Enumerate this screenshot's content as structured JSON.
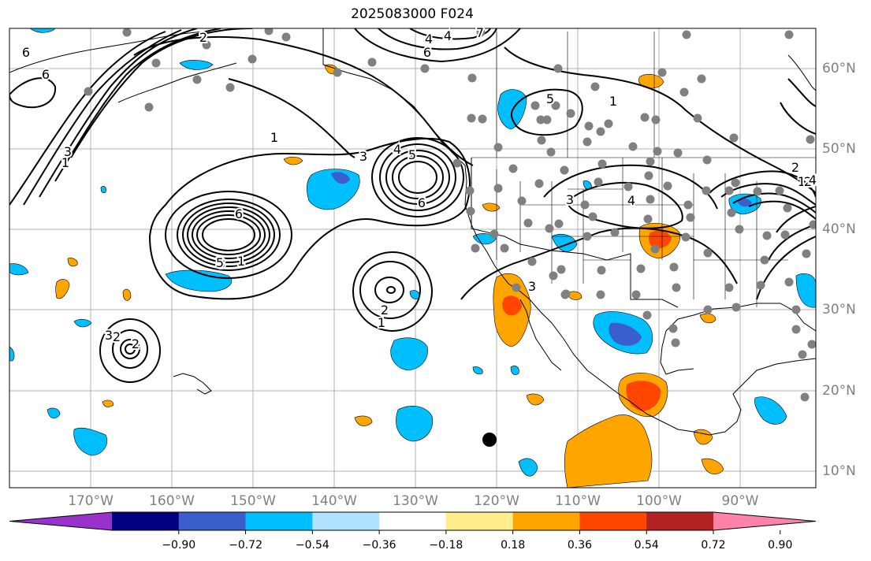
{
  "title": "2025083000 F024",
  "lon_labels": [
    "170°W",
    "160°W",
    "150°W",
    "140°W",
    "130°W",
    "120°W",
    "110°W",
    "100°W",
    "90°W"
  ],
  "lat_labels": [
    "60°N",
    "50°N",
    "40°N",
    "30°N",
    "20°N",
    "10°N"
  ],
  "colorbar": {
    "ticks": [
      "−0.90",
      "−0.72",
      "−0.54",
      "−0.36",
      "−0.18",
      "0.18",
      "0.36",
      "0.54",
      "0.72",
      "0.90"
    ],
    "colors": [
      "#9932cc",
      "#000080",
      "#3a5fcd",
      "#00bfff",
      "#b0e2ff",
      "#ffffff",
      "#ffec8b",
      "#ffa500",
      "#ff4500",
      "#b22222",
      "#ff82ab"
    ],
    "extend": "both"
  },
  "contour_labels": [
    "6",
    "6",
    "2",
    "1",
    "1",
    "3",
    "4",
    "5",
    "6",
    "3",
    "4",
    "5",
    "6",
    "7",
    "3",
    "1",
    "4",
    "3",
    "2",
    "6",
    "5",
    "2",
    "1",
    "3",
    "2",
    "2",
    "1",
    "3",
    "2",
    "1",
    "2",
    "4",
    "4"
  ],
  "colors": {
    "grid": "#b0b0b0",
    "station_dot": "#808080",
    "contour": "#000000",
    "label_text": "#808080"
  }
}
